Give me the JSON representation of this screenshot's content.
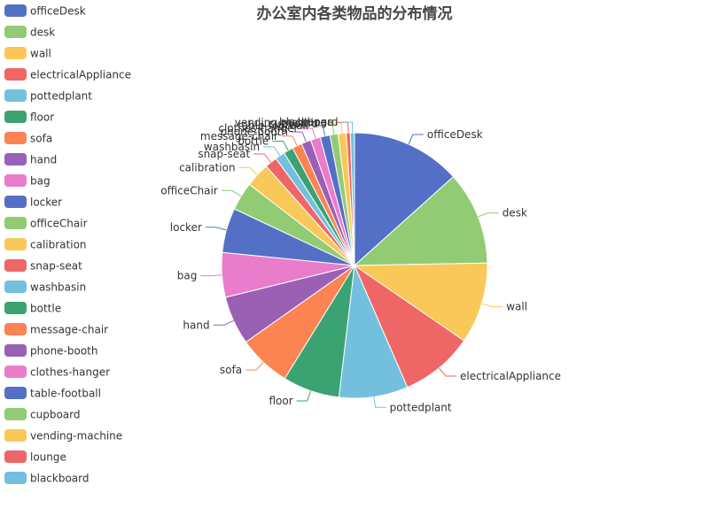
{
  "chart_data": {
    "type": "pie",
    "title": "办公室内各类物品的分布情况",
    "legend_position": "left",
    "categories": [
      "officeDesk",
      "desk",
      "wall",
      "electricalAppliance",
      "pottedplant",
      "floor",
      "sofa",
      "hand",
      "bag",
      "locker",
      "officeChair",
      "calibration",
      "snap-seat",
      "washbasin",
      "bottle",
      "message-chair",
      "phone-booth",
      "clothes-hanger",
      "table-football",
      "cupboard",
      "vending-machine",
      "lounge",
      "blackboard"
    ],
    "values": [
      13.5,
      11.5,
      10.0,
      9.0,
      8.5,
      7.0,
      6.5,
      6.0,
      5.5,
      5.5,
      3.5,
      3.0,
      1.5,
      1.2,
      1.2,
      1.2,
      1.2,
      1.2,
      1.2,
      1.0,
      1.0,
      0.5,
      0.5
    ],
    "colors": [
      "#5470c6",
      "#91cc75",
      "#fac858",
      "#ee6666",
      "#73c0de",
      "#3ba272",
      "#fc8452",
      "#9a60b4",
      "#ea7ccc"
    ]
  }
}
